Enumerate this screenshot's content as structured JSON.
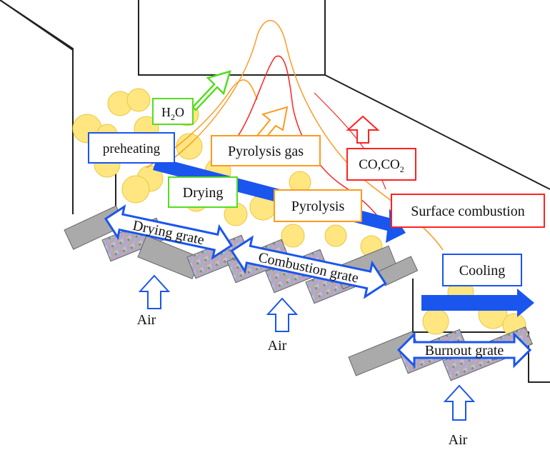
{
  "labels": {
    "h2o_main": "H",
    "h2o_sub": "2",
    "h2o_end": "O",
    "preheating": "preheating",
    "pyrolysis_gas": "Pyrolysis gas",
    "co_main": "CO,CO",
    "co_sub": "2",
    "drying": "Drying",
    "pyrolysis": "Pyrolysis",
    "surface_combustion": "Surface combustion",
    "cooling": "Cooling",
    "drying_grate": "Drying grate",
    "combustion_grate": "Combustion grate",
    "burnout_grate": "Burnout grate",
    "air_1": "Air",
    "air_2": "Air",
    "air_3": "Air"
  },
  "colors": {
    "green": "#55dd22",
    "orange": "#ff9a1f",
    "red": "#ff2222",
    "blue": "#1a55ee",
    "grate_gray": "#aaaaaa",
    "particle": "#ffe680"
  }
}
